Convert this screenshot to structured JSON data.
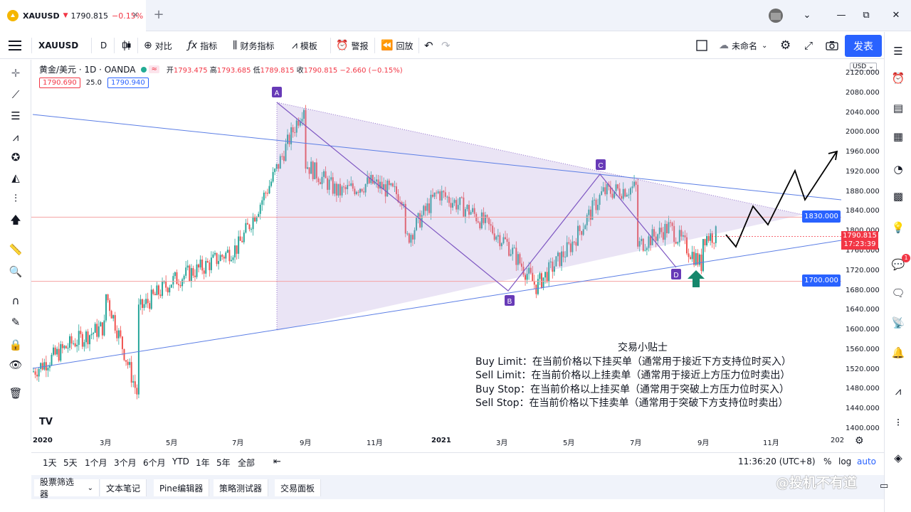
{
  "tab": {
    "symbol": "XAUUSD",
    "price": "1790.815",
    "change": "−0.15%",
    "close": "✕"
  },
  "window": {
    "minimize": "—",
    "restore": "⧉",
    "close": "✕",
    "new_tab": "+",
    "menu": "⌄"
  },
  "toolbar": {
    "symbol": "XAUUSD",
    "interval": "D",
    "compare": "对比",
    "indicators": "指标",
    "financials": "财务指标",
    "templates": "模板",
    "alert": "警报",
    "replay": "回放",
    "layout_name": "未命名",
    "publish": "发表"
  },
  "legend": {
    "title": "黄金/美元 · 1D · OANDA",
    "open_label": "开",
    "open": "1793.475",
    "high_label": "高",
    "high": "1793.685",
    "low_label": "低",
    "low": "1789.815",
    "close_label": "收",
    "close": "1790.815",
    "change": "−2.660 (−0.15%)",
    "bid": "1790.690",
    "spread": "25.0",
    "ask": "1790.940",
    "wave": "≈"
  },
  "price_axis": {
    "currency": "USD",
    "ticks": [
      "2120.000",
      "2080.000",
      "2040.000",
      "2000.000",
      "1960.000",
      "1920.000",
      "1880.000",
      "1840.000",
      "1800.000",
      "1760.000",
      "1720.000",
      "1680.000",
      "1640.000",
      "1600.000",
      "1560.000",
      "1520.000",
      "1480.000",
      "1440.000",
      "1400.000"
    ],
    "resistance_label": "1830.000",
    "support_label": "1700.000",
    "current_price": "1790.815",
    "countdown": "17:23:39"
  },
  "time_axis": {
    "ticks": [
      "2020",
      "3月",
      "5月",
      "7月",
      "9月",
      "11月",
      "2021",
      "3月",
      "5月",
      "7月",
      "9月",
      "11月",
      "202"
    ]
  },
  "annotations": {
    "A": "A",
    "B": "B",
    "C": "C",
    "D": "D"
  },
  "tips": {
    "title": "交易小贴士",
    "lines": [
      "Buy Limit：在当前价格以下挂买单（通常用于接近下方支持位时买入）",
      "Sell Limit：在当前价格以上挂卖单（通常用于接近上方压力位时卖出）",
      "Buy Stop：在当前价格以上挂买单（通常用于突破上方压力位时买入）",
      "Sell Stop：在当前价格以下挂卖单（通常用于突破下方支持位时卖出）"
    ]
  },
  "range_bar": {
    "ranges": [
      "1天",
      "5天",
      "1个月",
      "3个月",
      "6个月",
      "YTD",
      "1年",
      "5年",
      "全部"
    ],
    "time": "11:36:20 (UTC+8)",
    "percent": "%",
    "log": "log",
    "auto": "auto"
  },
  "panels": [
    "股票筛选器",
    "文本笔记",
    "Pine编辑器",
    "策略测试器",
    "交易面板"
  ],
  "watermark": "@投机不有道",
  "notification_count": "1",
  "colors": {
    "accent": "#2962ff",
    "up": "#26a69a",
    "down": "#ef5350",
    "triangle": "#b39ddb",
    "support_line": "#f23645"
  },
  "chart_data": {
    "type": "candlestick",
    "ylim": [
      1400,
      2120
    ],
    "levels": [
      {
        "value": 1830,
        "label": "1830.000"
      },
      {
        "value": 1700,
        "label": "1700.000"
      }
    ],
    "pattern_points": [
      {
        "name": "A",
        "date": "2020-08",
        "value": 2072
      },
      {
        "name": "B",
        "date": "2021-03",
        "value": 1677
      },
      {
        "name": "C",
        "date": "2021-06",
        "value": 1912
      },
      {
        "name": "D",
        "date": "2021-08",
        "value": 1725
      }
    ],
    "close_path": [
      [
        "2019-12",
        1517
      ],
      [
        "2020-01",
        1575
      ],
      [
        "2020-02",
        1610
      ],
      [
        "2020-02",
        1675
      ],
      [
        "2020-03",
        1470
      ],
      [
        "2020-03",
        1640
      ],
      [
        "2020-04",
        1700
      ],
      [
        "2020-05",
        1730
      ],
      [
        "2020-06",
        1770
      ],
      [
        "2020-07",
        1900
      ],
      [
        "2020-08",
        2060
      ],
      [
        "2020-08",
        1940
      ],
      [
        "2020-09",
        1880
      ],
      [
        "2020-10",
        1900
      ],
      [
        "2020-11",
        1870
      ],
      [
        "2020-11",
        1780
      ],
      [
        "2020-12",
        1880
      ],
      [
        "2021-01",
        1840
      ],
      [
        "2021-02",
        1780
      ],
      [
        "2021-03",
        1690
      ],
      [
        "2021-04",
        1770
      ],
      [
        "2021-05",
        1880
      ],
      [
        "2021-06",
        1890
      ],
      [
        "2021-06",
        1770
      ],
      [
        "2021-07",
        1810
      ],
      [
        "2021-08",
        1730
      ],
      [
        "2021-08",
        1790
      ],
      [
        "2021-09",
        1800
      ]
    ]
  }
}
